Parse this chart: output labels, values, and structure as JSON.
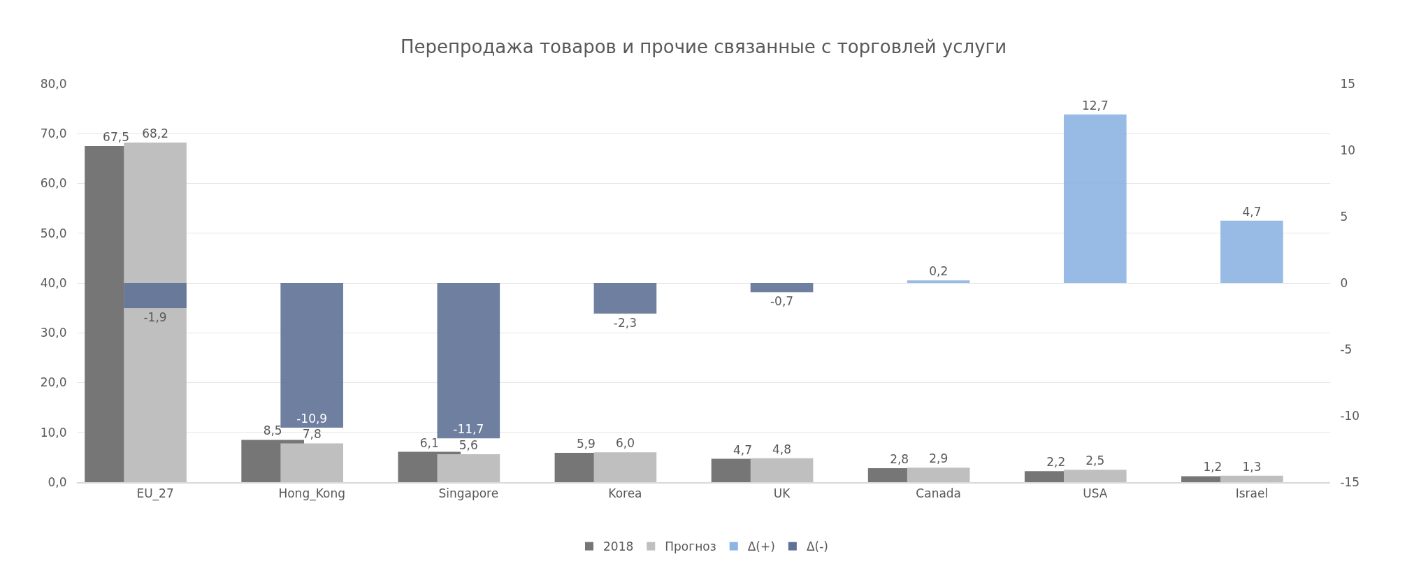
{
  "chart_data": {
    "type": "bar",
    "title": "Перепродажа товаров и прочие связанные с торговлей услуги",
    "categories": [
      "EU_27",
      "Hong_Kong",
      "Singapore",
      "Korea",
      "UK",
      "Canada",
      "USA",
      "Israel"
    ],
    "series": [
      {
        "name": "2018",
        "color": "#767676",
        "values": [
          67.5,
          8.5,
          6.1,
          5.9,
          4.7,
          2.8,
          2.2,
          1.2
        ],
        "value_labels": [
          "67,5",
          "8,5",
          "6,1",
          "5,9",
          "4,7",
          "2,8",
          "2,2",
          "1,2"
        ]
      },
      {
        "name": "Прогноз",
        "color": "#bfbfbf",
        "values": [
          68.2,
          7.8,
          5.6,
          6.0,
          4.8,
          2.9,
          2.5,
          1.3
        ],
        "value_labels": [
          "68,2",
          "7,8",
          "5,6",
          "6,0",
          "4,8",
          "2,9",
          "2,5",
          "1,3"
        ]
      },
      {
        "name": "Δ(+)",
        "color": "#8db4e2",
        "axis": "y2",
        "values": [
          null,
          null,
          null,
          null,
          null,
          0.2,
          12.7,
          4.7
        ],
        "value_labels": [
          null,
          null,
          null,
          null,
          null,
          "0,2",
          "12,7",
          "4,7"
        ]
      },
      {
        "name": "Δ(-)",
        "color": "#5f7196",
        "axis": "y2",
        "values": [
          -1.9,
          -10.9,
          -11.7,
          -2.3,
          -0.7,
          null,
          null,
          null
        ],
        "value_labels": [
          "-1,9",
          "-10,9",
          "-11,7",
          "-2,3",
          "-0,7",
          null,
          null,
          null
        ]
      }
    ],
    "ylim": [
      0,
      80
    ],
    "yticks": [
      {
        "value": 0,
        "label": "0,0"
      },
      {
        "value": 10,
        "label": "10,0"
      },
      {
        "value": 20,
        "label": "20,0"
      },
      {
        "value": 30,
        "label": "30,0"
      },
      {
        "value": 40,
        "label": "40,0"
      },
      {
        "value": 50,
        "label": "50,0"
      },
      {
        "value": 60,
        "label": "60,0"
      },
      {
        "value": 70,
        "label": "70,0"
      },
      {
        "value": 80,
        "label": "80,0"
      }
    ],
    "y2lim": [
      -15,
      15
    ],
    "y2ticks": [
      -15,
      -10,
      -5,
      0,
      5,
      10,
      15
    ],
    "grid": "y",
    "legend": "bottom"
  }
}
